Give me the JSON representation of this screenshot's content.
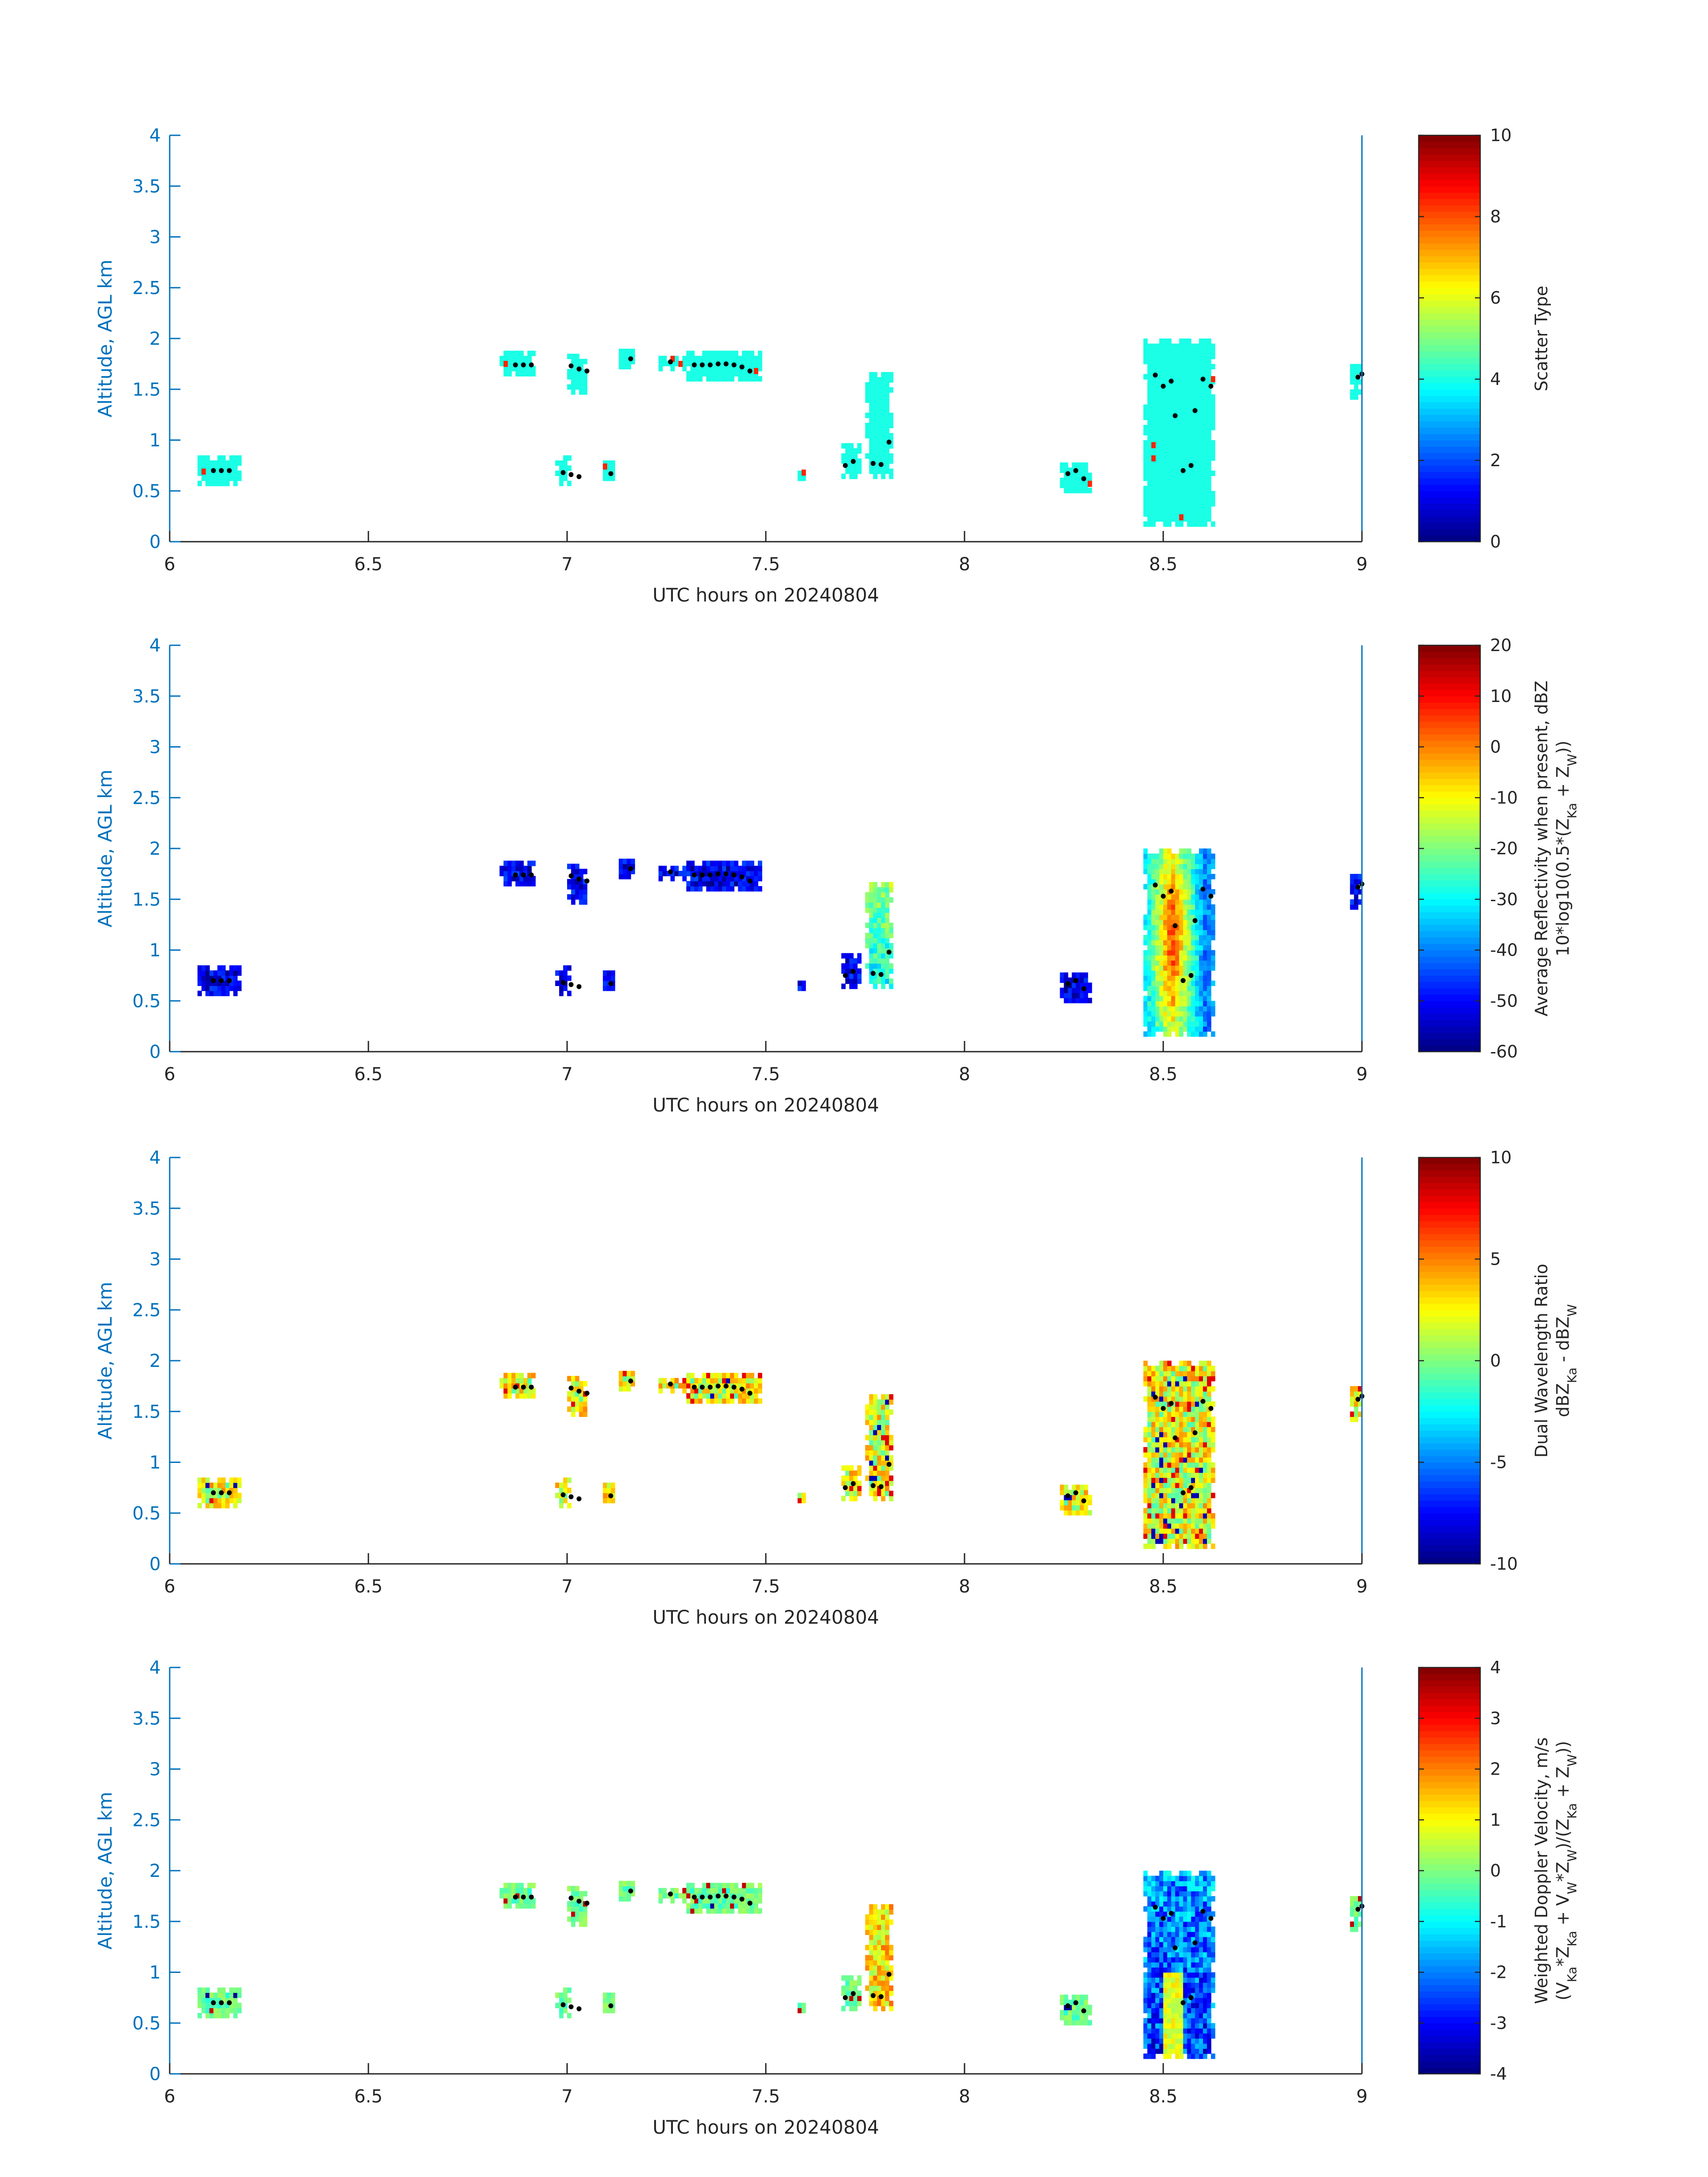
{
  "chart_data": [
    {
      "type": "heatmap",
      "xlabel": "UTC hours on 20240804",
      "ylabel": "Altitude, AGL km",
      "xlim": [
        6,
        9
      ],
      "ylim": [
        0,
        4
      ],
      "xticks": [
        "6",
        "6.5",
        "7",
        "7.5",
        "8",
        "8.5",
        "9"
      ],
      "yticks": [
        "0",
        "0.5",
        "1",
        "1.5",
        "2",
        "2.5",
        "3",
        "3.5",
        "4"
      ],
      "colorbar": {
        "title_lines": [
          "Scatter Type"
        ],
        "clim": [
          0,
          10
        ],
        "ticks": [
          "0",
          "2",
          "4",
          "6",
          "8",
          "10"
        ]
      },
      "default_value": 4,
      "accent_value": 8.4,
      "color_mode": "accent"
    },
    {
      "type": "heatmap",
      "xlabel": "UTC hours on 20240804",
      "ylabel": "Altitude, AGL km",
      "xlim": [
        6,
        9
      ],
      "ylim": [
        0,
        4
      ],
      "xticks": [
        "6",
        "6.5",
        "7",
        "7.5",
        "8",
        "8.5",
        "9"
      ],
      "yticks": [
        "0",
        "0.5",
        "1",
        "1.5",
        "2",
        "2.5",
        "3",
        "3.5",
        "4"
      ],
      "colorbar": {
        "title_lines": [
          "Average Reflectivity when present, dBZ",
          "10*log10(0.5*(Z_Ka + Z_W))"
        ],
        "clim": [
          -60,
          20
        ],
        "ticks": [
          "-60",
          "-50",
          "-40",
          "-30",
          "-20",
          "-10",
          "0",
          "10",
          "20"
        ]
      },
      "default_value": -50,
      "color_mode": "reflectivity"
    },
    {
      "type": "heatmap",
      "xlabel": "UTC hours on 20240804",
      "ylabel": "Altitude, AGL km",
      "xlim": [
        6,
        9
      ],
      "ylim": [
        0,
        4
      ],
      "xticks": [
        "6",
        "6.5",
        "7",
        "7.5",
        "8",
        "8.5",
        "9"
      ],
      "yticks": [
        "0",
        "0.5",
        "1",
        "1.5",
        "2",
        "2.5",
        "3",
        "3.5",
        "4"
      ],
      "colorbar": {
        "title_lines": [
          "Dual Wavelength Ratio",
          "dBZ_Ka - dBZ_W"
        ],
        "clim": [
          -10,
          10
        ],
        "ticks": [
          "-10",
          "-5",
          "0",
          "5",
          "10"
        ]
      },
      "default_value": 2,
      "color_mode": "dwr"
    },
    {
      "type": "heatmap",
      "xlabel": "UTC hours on 20240804",
      "ylabel": "Altitude, AGL km",
      "xlim": [
        6,
        9
      ],
      "ylim": [
        0,
        4
      ],
      "xticks": [
        "6",
        "6.5",
        "7",
        "7.5",
        "8",
        "8.5",
        "9"
      ],
      "yticks": [
        "0",
        "0.5",
        "1",
        "1.5",
        "2",
        "2.5",
        "3",
        "3.5",
        "4"
      ],
      "colorbar": {
        "title_lines": [
          "Weighted Doppler Velocity, m/s",
          "(V_Ka*Z_Ka + V_W*Z_W)/(Z_Ka + Z_W))"
        ],
        "clim": [
          -4,
          4
        ],
        "ticks": [
          "-4",
          "-3",
          "-2",
          "-1",
          "0",
          "1",
          "2",
          "3",
          "4"
        ]
      },
      "default_value": 0,
      "color_mode": "velocity"
    }
  ],
  "echoes": [
    {
      "name": "cell-6.1",
      "x0": 6.07,
      "x1": 6.18,
      "y0": 0.55,
      "y1": 0.85
    },
    {
      "name": "cell-6.9",
      "x0": 6.83,
      "x1": 6.92,
      "y0": 1.63,
      "y1": 1.87
    },
    {
      "name": "cell-7.0a",
      "x0": 7.0,
      "x1": 7.05,
      "y0": 1.45,
      "y1": 1.87
    },
    {
      "name": "cell-7.15",
      "x0": 7.13,
      "x1": 7.17,
      "y0": 1.7,
      "y1": 1.9
    },
    {
      "name": "cell-7.25",
      "x0": 7.23,
      "x1": 7.3,
      "y0": 1.68,
      "y1": 1.82
    },
    {
      "name": "cell-7.4",
      "x0": 7.3,
      "x1": 7.49,
      "y0": 1.58,
      "y1": 1.9
    },
    {
      "name": "cell-7.0b",
      "x0": 6.97,
      "x1": 7.01,
      "y0": 0.55,
      "y1": 0.85
    },
    {
      "name": "cell-7.1",
      "x0": 7.09,
      "x1": 7.12,
      "y0": 0.55,
      "y1": 0.82
    },
    {
      "name": "cell-7.6",
      "x0": 7.58,
      "x1": 7.6,
      "y0": 0.6,
      "y1": 0.72
    },
    {
      "name": "cell-7.72",
      "x0": 7.69,
      "x1": 7.74,
      "y0": 0.62,
      "y1": 0.95
    },
    {
      "name": "cell-7.78",
      "x0": 7.75,
      "x1": 7.82,
      "y0": 0.62,
      "y1": 1.67
    },
    {
      "name": "cell-8.28",
      "x0": 8.24,
      "x1": 8.32,
      "y0": 0.48,
      "y1": 0.78
    },
    {
      "name": "cell-8.55",
      "x0": 8.45,
      "x1": 8.63,
      "y0": 0.15,
      "y1": 1.98
    },
    {
      "name": "cell-9.0",
      "x0": 8.97,
      "x1": 9.0,
      "y0": 1.4,
      "y1": 1.76
    }
  ],
  "accent_cells": [
    {
      "x": 6.08,
      "y": 0.67
    },
    {
      "x": 6.84,
      "y": 1.73
    },
    {
      "x": 7.09,
      "y": 0.72
    },
    {
      "x": 7.26,
      "y": 1.78
    },
    {
      "x": 7.28,
      "y": 1.73
    },
    {
      "x": 7.47,
      "y": 1.66
    },
    {
      "x": 7.59,
      "y": 0.66
    },
    {
      "x": 8.31,
      "y": 0.55
    },
    {
      "x": 8.47,
      "y": 0.93
    },
    {
      "x": 8.47,
      "y": 0.8
    },
    {
      "x": 8.54,
      "y": 0.22
    },
    {
      "x": 8.62,
      "y": 1.58
    }
  ],
  "markers": [
    {
      "x": 6.11,
      "y": 0.7
    },
    {
      "x": 6.13,
      "y": 0.7
    },
    {
      "x": 6.15,
      "y": 0.7
    },
    {
      "x": 6.87,
      "y": 1.74
    },
    {
      "x": 6.89,
      "y": 1.74
    },
    {
      "x": 6.91,
      "y": 1.74
    },
    {
      "x": 7.01,
      "y": 1.73
    },
    {
      "x": 7.03,
      "y": 1.7
    },
    {
      "x": 7.05,
      "y": 1.68
    },
    {
      "x": 7.16,
      "y": 1.8
    },
    {
      "x": 7.26,
      "y": 1.77
    },
    {
      "x": 7.32,
      "y": 1.74
    },
    {
      "x": 7.34,
      "y": 1.74
    },
    {
      "x": 7.36,
      "y": 1.74
    },
    {
      "x": 7.38,
      "y": 1.75
    },
    {
      "x": 7.4,
      "y": 1.75
    },
    {
      "x": 7.42,
      "y": 1.74
    },
    {
      "x": 7.44,
      "y": 1.72
    },
    {
      "x": 7.46,
      "y": 1.68
    },
    {
      "x": 6.99,
      "y": 0.68
    },
    {
      "x": 7.01,
      "y": 0.66
    },
    {
      "x": 7.03,
      "y": 0.64
    },
    {
      "x": 7.11,
      "y": 0.67
    },
    {
      "x": 7.7,
      "y": 0.75
    },
    {
      "x": 7.72,
      "y": 0.79
    },
    {
      "x": 7.77,
      "y": 0.77
    },
    {
      "x": 7.79,
      "y": 0.76
    },
    {
      "x": 7.81,
      "y": 0.98
    },
    {
      "x": 8.26,
      "y": 0.67
    },
    {
      "x": 8.28,
      "y": 0.7
    },
    {
      "x": 8.3,
      "y": 0.62
    },
    {
      "x": 8.48,
      "y": 1.64
    },
    {
      "x": 8.5,
      "y": 1.53
    },
    {
      "x": 8.52,
      "y": 1.58
    },
    {
      "x": 8.53,
      "y": 1.24
    },
    {
      "x": 8.55,
      "y": 0.7
    },
    {
      "x": 8.57,
      "y": 0.75
    },
    {
      "x": 8.58,
      "y": 1.29
    },
    {
      "x": 8.6,
      "y": 1.6
    },
    {
      "x": 8.62,
      "y": 1.53
    },
    {
      "x": 8.99,
      "y": 1.62
    },
    {
      "x": 9.0,
      "y": 1.65
    }
  ]
}
